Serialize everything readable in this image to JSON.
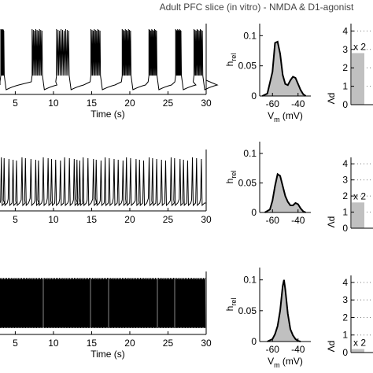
{
  "figure_title": "Adult PFC slice (in vitro) - NMDA & D1-agonist",
  "colors": {
    "trace": "#000000",
    "hist_fill": "#c0c0c0",
    "bar_fill": "#c0c0c0",
    "axis": "#000000"
  },
  "chart_data": [
    {
      "type": "line",
      "name": "trace-1",
      "pattern": "bursting",
      "x": [
        0,
        0.7,
        2.8,
        3.6,
        7.1,
        8.6,
        10.3,
        12.1,
        14.8,
        16.2,
        18.9,
        20.2,
        22.4,
        23.6,
        25.9,
        26.8,
        28.3,
        29.6
      ],
      "x_meaning": "burst onset times (s)",
      "xlim": [
        3,
        30
      ],
      "xticks": [
        5,
        10,
        15,
        20,
        25,
        30
      ],
      "xlabel": "Time (s)"
    },
    {
      "type": "area",
      "name": "hist-1",
      "x": [
        -68,
        -64,
        -60,
        -58,
        -56,
        -54,
        -52,
        -50,
        -48,
        -46,
        -44,
        -42,
        -40,
        -38,
        -36,
        -34
      ],
      "y": [
        0,
        0.004,
        0.04,
        0.088,
        0.09,
        0.07,
        0.035,
        0.02,
        0.018,
        0.026,
        0.032,
        0.03,
        0.02,
        0.01,
        0.003,
        0
      ],
      "xlim": [
        -70,
        -30
      ],
      "ylim": [
        0,
        0.12
      ],
      "xticks": [
        -60,
        -40
      ],
      "yticks": [
        0,
        0.05,
        0.1
      ],
      "ylabel": "h_rel",
      "xlabel": "V_m (mV)"
    },
    {
      "type": "bar",
      "name": "bar-1",
      "values": [
        2.8
      ],
      "annotation": "x 2",
      "ylim": [
        0,
        4.4
      ],
      "yticks": [
        0,
        1,
        2,
        3,
        4
      ],
      "ylabel": "Λd"
    },
    {
      "type": "line",
      "name": "trace-2",
      "pattern": "irregular spiking",
      "spike_times": [
        0.2,
        0.6,
        1.3,
        1.9,
        2.4,
        3.2,
        3.7,
        4.5,
        5.2,
        5.6,
        6.3,
        7.0,
        7.5,
        8.1,
        8.8,
        9.4,
        10.1,
        10.8,
        11.2,
        11.6,
        12.1,
        12.8,
        13.6,
        14.0,
        14.7,
        15.3,
        15.9,
        16.6,
        17.2,
        17.9,
        18.4,
        19.0,
        19.8,
        20.3,
        20.9,
        21.7,
        22.2,
        22.8,
        23.5,
        24.1,
        24.9,
        25.4,
        26.2,
        26.7,
        27.3,
        28.0,
        28.6,
        29.3
      ],
      "xlim": [
        3,
        30
      ],
      "xticks": [
        5,
        10,
        15,
        20,
        25,
        30
      ],
      "xlabel": ""
    },
    {
      "type": "area",
      "name": "hist-2",
      "x": [
        -66,
        -62,
        -60,
        -58,
        -56,
        -54,
        -52,
        -50,
        -48,
        -46,
        -44,
        -42,
        -40,
        -38,
        -36,
        -34
      ],
      "y": [
        0,
        0.005,
        0.02,
        0.045,
        0.065,
        0.062,
        0.045,
        0.028,
        0.018,
        0.012,
        0.012,
        0.016,
        0.014,
        0.007,
        0.002,
        0
      ],
      "xlim": [
        -70,
        -30
      ],
      "ylim": [
        0,
        0.12
      ],
      "xticks": [
        -60,
        -40
      ],
      "yticks": [
        0,
        0.05,
        0.1
      ],
      "ylabel": "h_rel",
      "xlabel": ""
    },
    {
      "type": "bar",
      "name": "bar-2",
      "values": [
        1.6
      ],
      "annotation": "x 2",
      "ylim": [
        0,
        4.4
      ],
      "yticks": [
        0,
        1,
        2,
        3,
        4
      ],
      "ylabel": "Λd"
    },
    {
      "type": "line",
      "name": "trace-3",
      "pattern": "tonic high-rate spiking",
      "xlim": [
        3,
        30
      ],
      "xticks": [
        5,
        10,
        15,
        20,
        25,
        30
      ],
      "xlabel": "Time (s)"
    },
    {
      "type": "area",
      "name": "hist-3",
      "x": [
        -64,
        -60,
        -58,
        -56,
        -54,
        -52,
        -51,
        -50,
        -48,
        -46,
        -44,
        -42,
        -40,
        -38
      ],
      "y": [
        0,
        0.004,
        0.012,
        0.025,
        0.05,
        0.09,
        0.1,
        0.085,
        0.045,
        0.02,
        0.01,
        0.004,
        0.001,
        0
      ],
      "xlim": [
        -70,
        -30
      ],
      "ylim": [
        0,
        0.12
      ],
      "xticks": [
        -60,
        -40
      ],
      "yticks": [
        0,
        0.05,
        0.1
      ],
      "ylabel": "h_rel",
      "xlabel": "V_m (mV)"
    },
    {
      "type": "bar",
      "name": "bar-3",
      "values": [
        0.2
      ],
      "annotation": "x 2",
      "ylim": [
        0,
        4.4
      ],
      "yticks": [
        0,
        1,
        2,
        3,
        4
      ],
      "ylabel": "Λd"
    }
  ]
}
